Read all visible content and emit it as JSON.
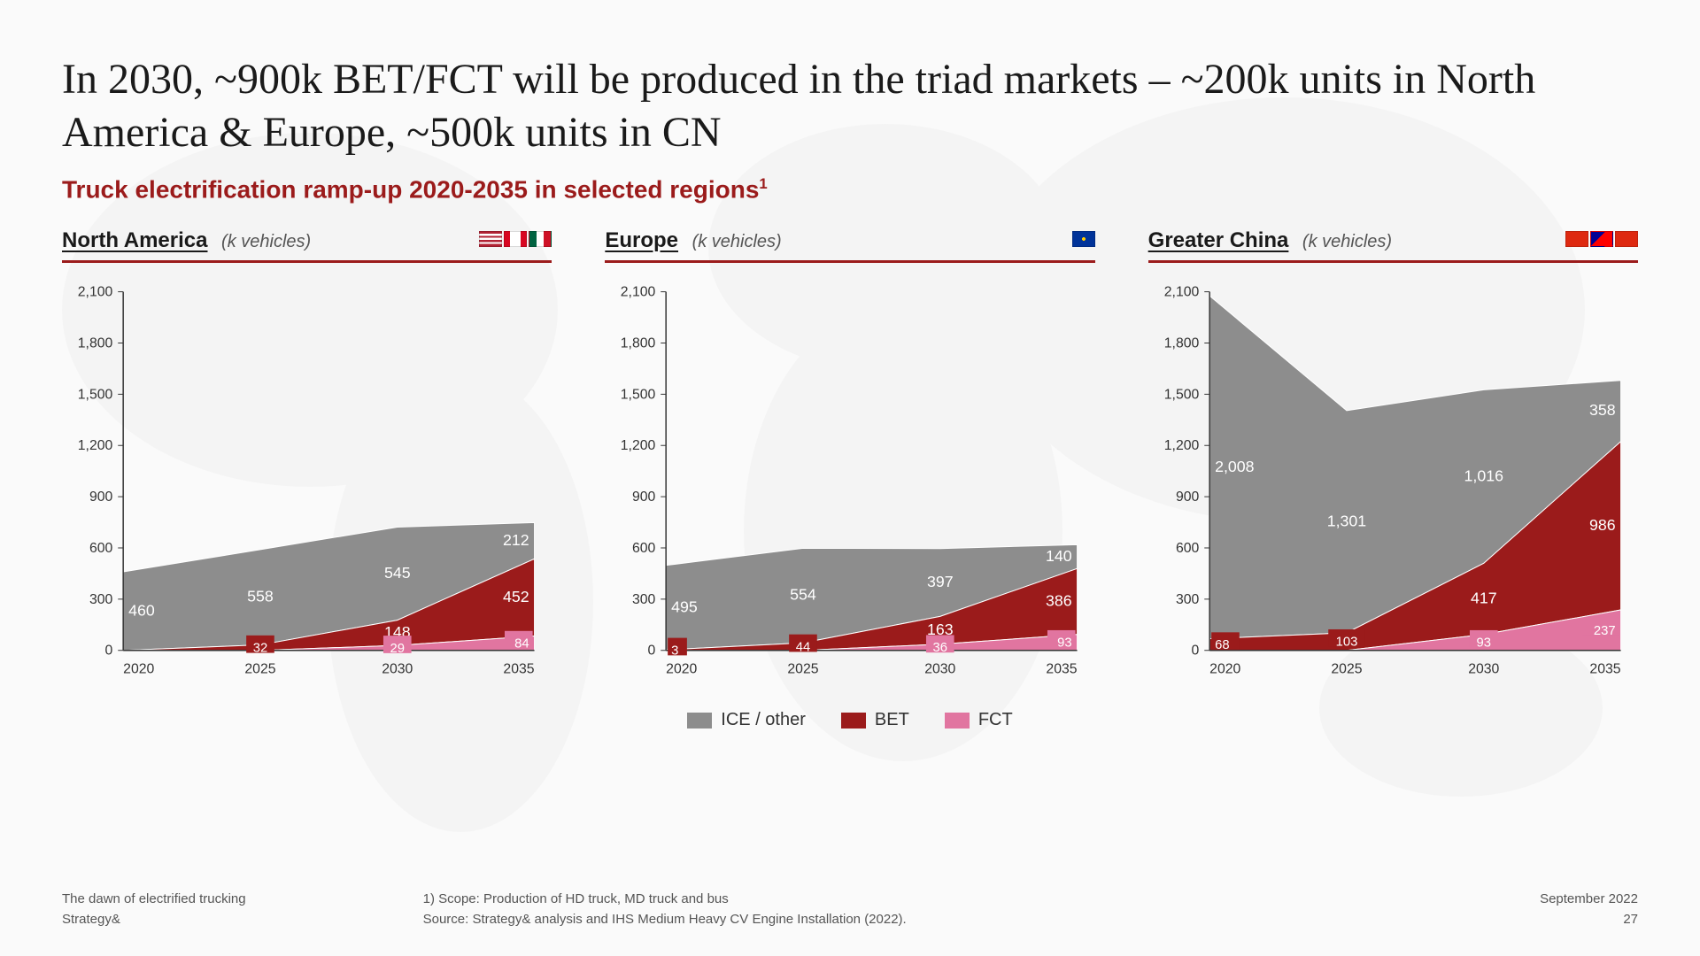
{
  "title": "In 2030, ~900k BET/FCT will be produced in the triad markets – ~200k units in North America & Europe, ~500k units in CN",
  "subtitle_main": "Truck electrification ramp-up 2020-2035 in selected regions",
  "subtitle_sup": "1",
  "unit_label": "(k vehicles)",
  "y_axis": {
    "min": 0,
    "max": 2100,
    "step": 300
  },
  "x_categories": [
    "2020",
    "2025",
    "2030",
    "2035"
  ],
  "series_defs": [
    {
      "key": "fct",
      "label": "FCT",
      "color": "#e175a0"
    },
    {
      "key": "bet",
      "label": "BET",
      "color": "#9b1b1b"
    },
    {
      "key": "ice",
      "label": "ICE / other",
      "color": "#8d8d8d"
    }
  ],
  "legend_order": [
    "ice",
    "bet",
    "fct"
  ],
  "colors": {
    "axis": "#333333",
    "title_text": "#1a1a1a",
    "subtitle_text": "#9b1b1b",
    "underline": "#9b1b1b"
  },
  "charts": [
    {
      "id": "na",
      "title": "North America",
      "flags": [
        {
          "name": "us-flag",
          "bg": "linear-gradient(#b22234 14%,#fff 14% 28%,#b22234 28% 42%,#fff 42% 57%,#b22234 57% 71%,#fff 71% 85%,#b22234 85%)"
        },
        {
          "name": "ca-flag",
          "bg": "linear-gradient(90deg,#d80621 25%,#fff 25% 75%,#d80621 75%)"
        },
        {
          "name": "mx-flag",
          "bg": "linear-gradient(90deg,#006341 33%,#fff 33% 66%,#ce1126 66%)"
        }
      ],
      "data": {
        "ice": [
          460,
          558,
          545,
          212
        ],
        "bet": [
          0,
          32,
          148,
          452
        ],
        "fct": [
          0,
          0,
          29,
          84
        ]
      },
      "labels": [
        {
          "x": 0,
          "series": "ice",
          "text": "460"
        },
        {
          "x": 1,
          "series": "ice",
          "text": "558"
        },
        {
          "x": 1,
          "series": "bet",
          "text": "32",
          "boxed": true
        },
        {
          "x": 2,
          "series": "ice",
          "text": "545"
        },
        {
          "x": 2,
          "series": "bet",
          "text": "148"
        },
        {
          "x": 2,
          "series": "fct",
          "text": "29",
          "boxed": true
        },
        {
          "x": 3,
          "series": "ice",
          "text": "212"
        },
        {
          "x": 3,
          "series": "bet",
          "text": "452"
        },
        {
          "x": 3,
          "series": "fct",
          "text": "84",
          "boxed": true
        }
      ]
    },
    {
      "id": "eu",
      "title": "Europe",
      "flags": [
        {
          "name": "eu-flag",
          "bg": "radial-gradient(circle at 50% 50%, #ffcc00 0 2px, transparent 2px), #003399"
        }
      ],
      "data": {
        "ice": [
          495,
          554,
          397,
          140
        ],
        "bet": [
          3,
          44,
          163,
          386
        ],
        "fct": [
          0,
          0,
          36,
          93
        ]
      },
      "labels": [
        {
          "x": 0,
          "series": "ice",
          "text": "495"
        },
        {
          "x": 0,
          "series": "bet",
          "text": "3",
          "boxed": true
        },
        {
          "x": 1,
          "series": "ice",
          "text": "554"
        },
        {
          "x": 1,
          "series": "bet",
          "text": "44",
          "boxed": true
        },
        {
          "x": 2,
          "series": "ice",
          "text": "397"
        },
        {
          "x": 2,
          "series": "bet",
          "text": "163"
        },
        {
          "x": 2,
          "series": "fct",
          "text": "36",
          "boxed": true
        },
        {
          "x": 3,
          "series": "ice",
          "text": "140"
        },
        {
          "x": 3,
          "series": "bet",
          "text": "386"
        },
        {
          "x": 3,
          "series": "fct",
          "text": "93",
          "boxed": true
        }
      ]
    },
    {
      "id": "cn",
      "title": "Greater China",
      "flags": [
        {
          "name": "cn-flag",
          "bg": "#de2910"
        },
        {
          "name": "tw-flag",
          "bg": "linear-gradient(135deg,#000095 40%, transparent 40%), #fe0000"
        },
        {
          "name": "hk-flag",
          "bg": "#de2910"
        }
      ],
      "data": {
        "ice": [
          2008,
          1301,
          1016,
          358
        ],
        "bet": [
          68,
          103,
          417,
          986
        ],
        "fct": [
          0,
          0,
          93,
          237
        ]
      },
      "labels": [
        {
          "x": 0,
          "series": "ice",
          "text": "2,008"
        },
        {
          "x": 0,
          "series": "bet",
          "text": "68",
          "boxed": true
        },
        {
          "x": 1,
          "series": "ice",
          "text": "1,301"
        },
        {
          "x": 1,
          "series": "bet",
          "text": "103",
          "boxed": true
        },
        {
          "x": 2,
          "series": "ice",
          "text": "1,016"
        },
        {
          "x": 2,
          "series": "bet",
          "text": "417"
        },
        {
          "x": 2,
          "series": "fct",
          "text": "93",
          "boxed": true
        },
        {
          "x": 3,
          "series": "ice",
          "text": "358"
        },
        {
          "x": 3,
          "series": "bet",
          "text": "986"
        },
        {
          "x": 3,
          "series": "fct",
          "text": "237",
          "boxed": true
        }
      ]
    }
  ],
  "footer": {
    "left_line1": "The dawn of electrified trucking",
    "left_line2": "Strategy&",
    "center_line1": "1) Scope: Production of HD truck, MD truck and bus",
    "center_line2": "Source: Strategy& analysis and IHS Medium Heavy CV Engine Installation (2022).",
    "right_line1": "September 2022",
    "right_line2": "27"
  }
}
